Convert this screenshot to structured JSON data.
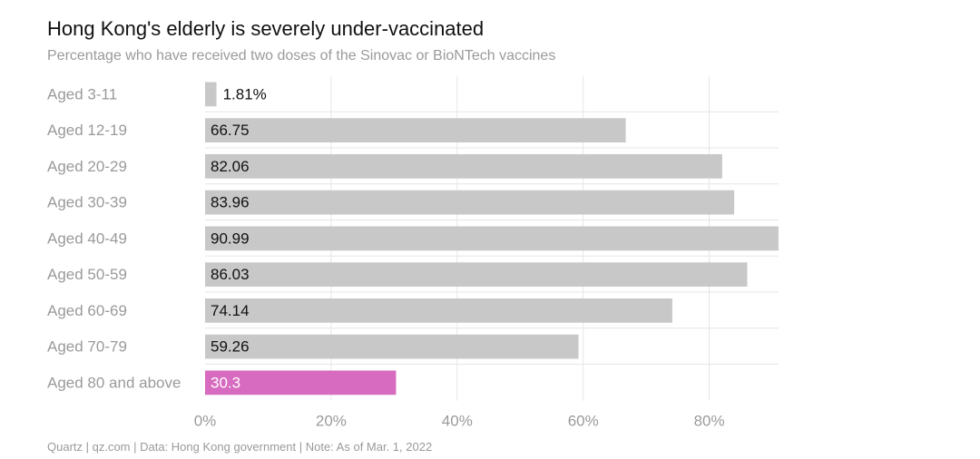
{
  "title": "Hong Kong's elderly is severely under-vaccinated",
  "subtitle": "Percentage who have received two doses of the Sinovac or BioNTech vaccines",
  "footer": "Quartz | qz.com | Data: Hong Kong government | Note: As of Mar. 1, 2022",
  "colors": {
    "bar": "#c8c8c8",
    "highlight": "#d66bbf",
    "grid": "#e6e6e6",
    "category_text": "#9a9a9a",
    "value_text": "#111111",
    "highlight_text": "#ffffff"
  },
  "chart_data": {
    "type": "bar",
    "orientation": "horizontal",
    "title": "Hong Kong's elderly is severely under-vaccinated",
    "subtitle": "Percentage who have received two doses of the Sinovac or BioNTech vaccines",
    "categories": [
      "Aged 3-11",
      "Aged 12-19",
      "Aged 20-29",
      "Aged 30-39",
      "Aged 40-49",
      "Aged 50-59",
      "Aged 60-69",
      "Aged 70-79",
      "Aged 80 and above"
    ],
    "values": [
      1.81,
      66.75,
      82.06,
      83.96,
      90.99,
      86.03,
      74.14,
      59.26,
      30.3
    ],
    "value_labels": [
      "1.81%",
      "66.75",
      "82.06",
      "83.96",
      "90.99",
      "86.03",
      "74.14",
      "59.26",
      "30.3"
    ],
    "highlighted_category": "Aged 80 and above",
    "xlim": [
      0,
      91
    ],
    "xticks": [
      0,
      20,
      40,
      60,
      80
    ],
    "xtick_labels": [
      "0%",
      "20%",
      "40%",
      "60%",
      "80%"
    ],
    "xlabel": "",
    "ylabel": "",
    "grid": true,
    "legend": false
  }
}
